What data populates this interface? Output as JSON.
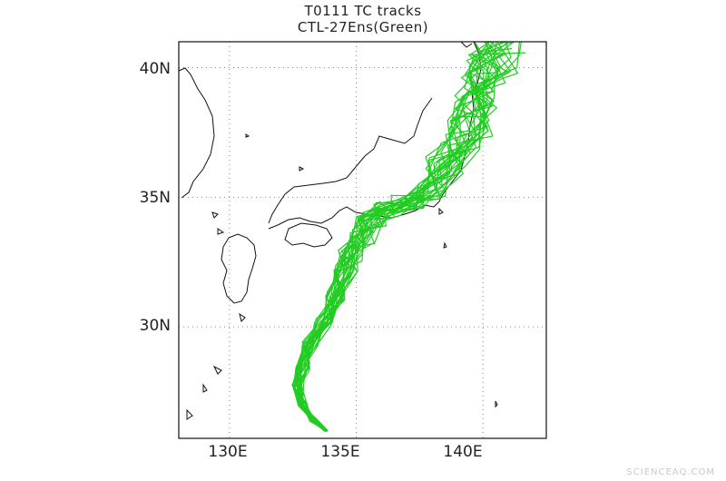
{
  "title_line1": "T0111 TC tracks",
  "title_line2": "CTL-27Ens(Green)",
  "axes": {
    "lon_ticks": [
      "130E",
      "135E",
      "140E"
    ],
    "lat_ticks": [
      "40N",
      "35N",
      "30N"
    ],
    "lon_range": [
      128,
      142.5
    ],
    "lat_range": [
      25.7,
      41
    ]
  },
  "colors": {
    "tracks": "#22cc22",
    "coast": "#111111",
    "grid": "#888888"
  },
  "tracks": {
    "ensemble_size": 27,
    "lon_lat_path": [
      [
        133.8,
        26.0
      ],
      [
        133.3,
        26.4
      ],
      [
        132.9,
        27.0
      ],
      [
        132.7,
        27.7
      ],
      [
        132.9,
        28.5
      ],
      [
        133.2,
        29.3
      ],
      [
        133.7,
        30.2
      ],
      [
        134.2,
        31.2
      ],
      [
        134.6,
        32.2
      ],
      [
        134.8,
        32.8
      ],
      [
        135.2,
        33.5
      ],
      [
        135.6,
        34.2
      ],
      [
        136.2,
        34.5
      ],
      [
        137.0,
        34.8
      ],
      [
        137.8,
        35.3
      ],
      [
        138.5,
        36.2
      ],
      [
        139.1,
        37.0
      ],
      [
        139.5,
        37.8
      ],
      [
        139.8,
        38.6
      ],
      [
        140.1,
        39.5
      ],
      [
        140.4,
        40.2
      ],
      [
        140.6,
        41.0
      ]
    ]
  },
  "watermark": "SCIENCEAQ.COM"
}
